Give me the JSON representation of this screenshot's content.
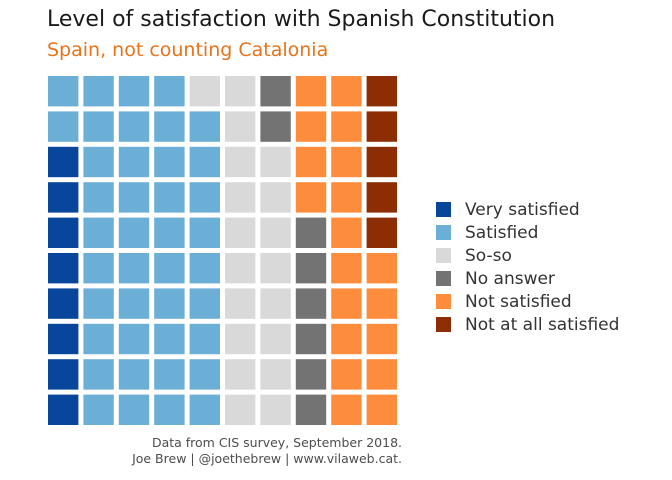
{
  "title": "Level of satisfaction with Spanish Constitution",
  "subtitle": "Spain, not counting Catalonia",
  "caption": {
    "line1": "Data from CIS survey, September 2018.",
    "line2": "Joe Brew | @joethebrew | www.vilaweb.cat."
  },
  "chart_data": {
    "type": "waffle",
    "grid": {
      "rows": 10,
      "columns": 10
    },
    "fill_order": "column-major, bottom-to-top, left-to-right",
    "categories": [
      {
        "name": "Very satisfied",
        "squares": 8,
        "color": "#08469b"
      },
      {
        "name": "Satisfied",
        "squares": 41,
        "color": "#6baed6"
      },
      {
        "name": "So-so",
        "squares": 19,
        "color": "#d9d9d9"
      },
      {
        "name": "No answer",
        "squares": 8,
        "color": "#737373"
      },
      {
        "name": "Not satisfied",
        "squares": 19,
        "color": "#fd8d3c"
      },
      {
        "name": "Not at all satisfied",
        "squares": 5,
        "color": "#8c2d04"
      }
    ],
    "legend_position": "right"
  }
}
